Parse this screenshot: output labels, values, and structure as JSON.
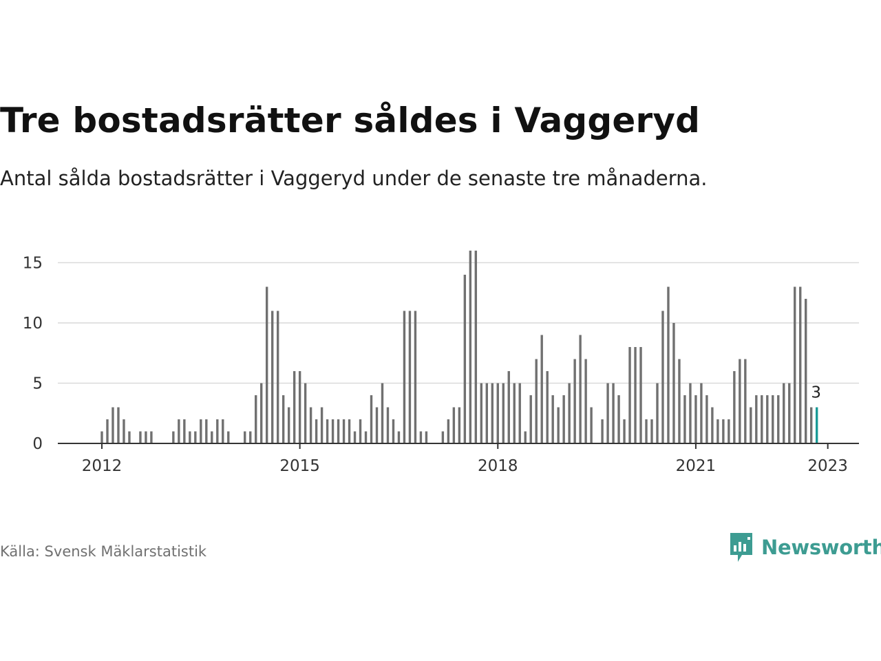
{
  "header": {
    "title": "Tre bostadsrätter såldes i Vaggeryd",
    "subtitle": "Antal sålda bostadsrätter i Vaggeryd under de senaste tre månaderna."
  },
  "footer": {
    "source": "Källa: Svensk Mäklarstatistik",
    "brand": "Newsworthy"
  },
  "colors": {
    "bar": "#707070",
    "highlight": "#1a9a96",
    "grid": "#d9d9d9",
    "axis": "#333333",
    "brand": "#3d9c92"
  },
  "chart_data": {
    "type": "bar",
    "x_start": "2012-01",
    "frequency": "monthly",
    "values": [
      1,
      2,
      3,
      3,
      2,
      1,
      0,
      1,
      1,
      1,
      0,
      0,
      0,
      1,
      2,
      2,
      1,
      1,
      2,
      2,
      1,
      2,
      2,
      1,
      0,
      0,
      1,
      1,
      4,
      5,
      13,
      11,
      11,
      4,
      3,
      6,
      6,
      5,
      3,
      2,
      3,
      2,
      2,
      2,
      2,
      2,
      1,
      2,
      1,
      4,
      3,
      5,
      3,
      2,
      1,
      11,
      11,
      11,
      1,
      1,
      0,
      0,
      1,
      2,
      3,
      3,
      14,
      16,
      16,
      5,
      5,
      5,
      5,
      5,
      6,
      5,
      5,
      1,
      4,
      7,
      9,
      6,
      4,
      3,
      4,
      5,
      7,
      9,
      7,
      3,
      0,
      2,
      5,
      5,
      4,
      2,
      8,
      8,
      8,
      2,
      2,
      5,
      11,
      13,
      10,
      7,
      4,
      5,
      4,
      5,
      4,
      3,
      2,
      2,
      2,
      6,
      7,
      7,
      3,
      4,
      4,
      4,
      4,
      4,
      5,
      5,
      13,
      13,
      12,
      3,
      3
    ],
    "x_ticks": [
      "2012",
      "2015",
      "2018",
      "2021",
      "2023"
    ],
    "y_ticks": [
      0,
      5,
      10,
      15
    ],
    "ylim": [
      0,
      16
    ],
    "highlight_last": true,
    "last_value_label": "3",
    "grid": true
  }
}
